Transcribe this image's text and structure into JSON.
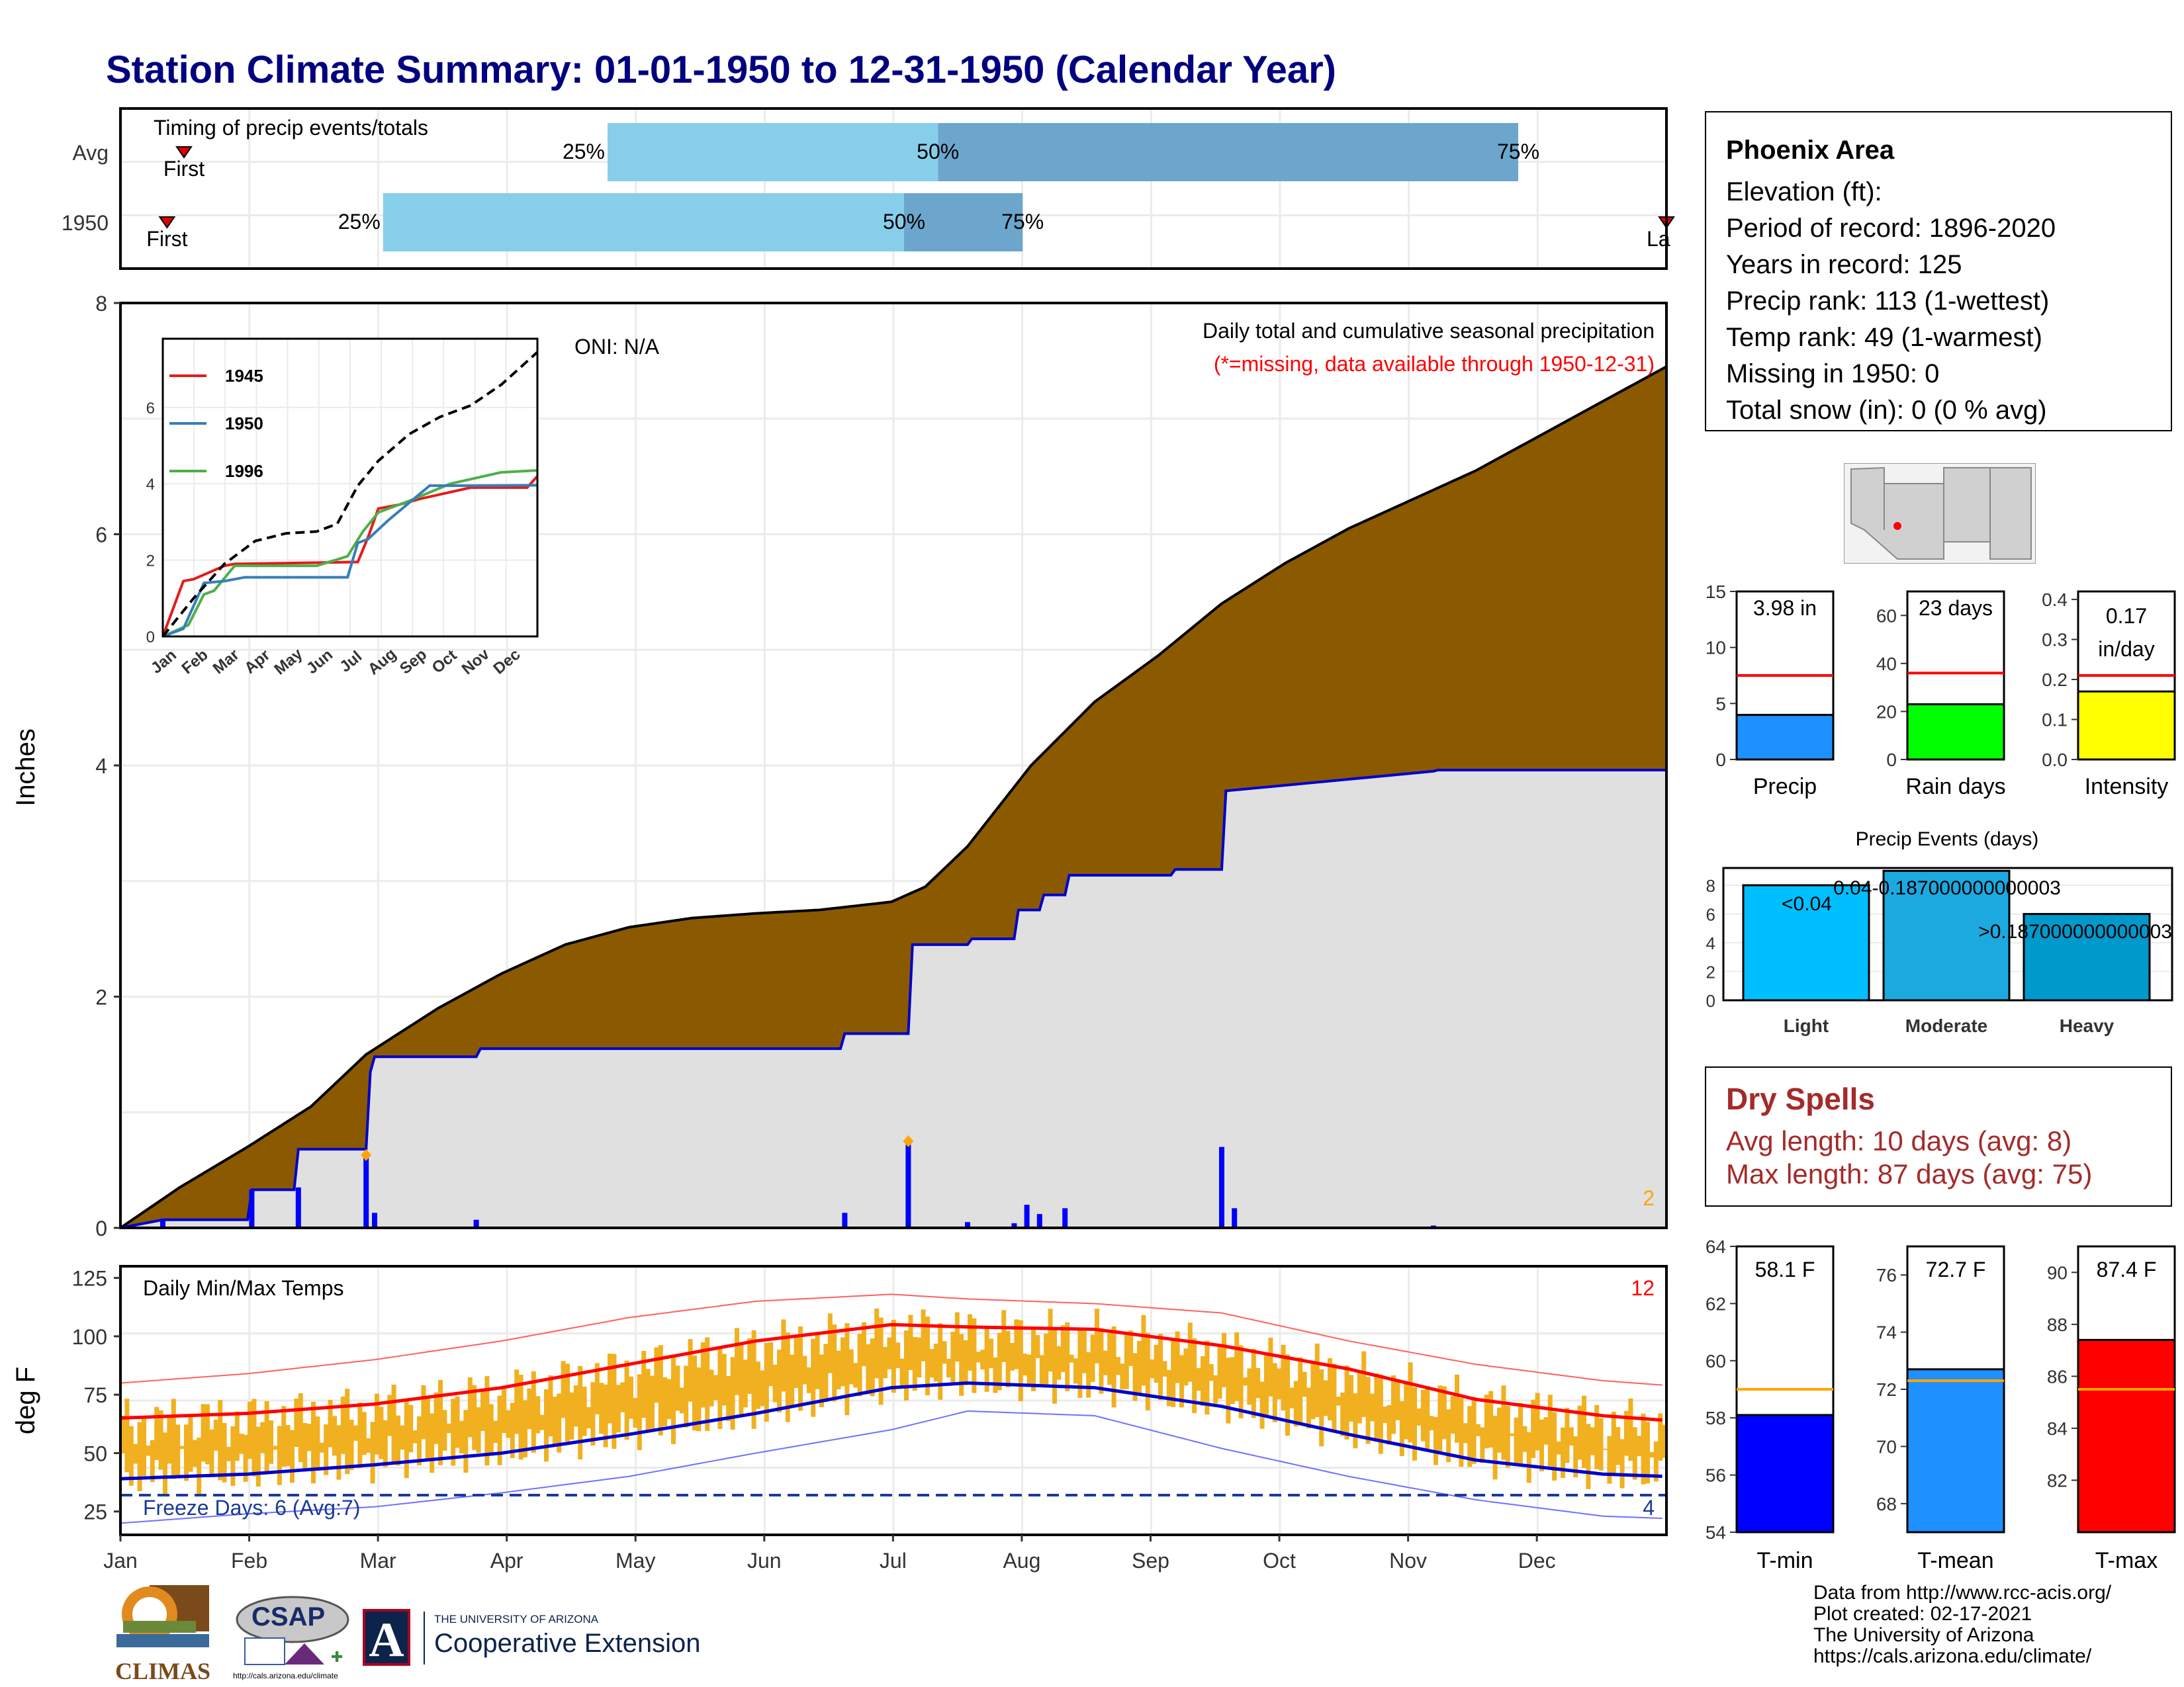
{
  "title": "Station Climate Summary: 01-01-1950 to 12-31-1950 (Calendar Year)",
  "colors": {
    "title": "#000080",
    "precip_fill": "#8B5A00",
    "current_fill": "#E0E0E0",
    "current_line": "#0000CD",
    "bars_blue": "#0000FF",
    "range_orange": "#F0B020",
    "max_red": "#FF0000",
    "min_blue": "#0000CD",
    "light_blue": "#87CEEB",
    "mid_blue": "#6CA6CD"
  },
  "timing": {
    "label": "Timing of precip events/totals",
    "rows": [
      "Avg",
      "1950"
    ],
    "pct_labels": [
      "25%",
      "50%",
      "75%"
    ],
    "first_label": "First",
    "last_label": "Last",
    "last_label_cut": "La",
    "avg": {
      "first": 15,
      "p25": 115,
      "p50": 193,
      "p75": 330,
      "last": 511
    },
    "y1950": {
      "first": 11,
      "p25": 62,
      "p50": 185,
      "p75": 213,
      "last": 575
    }
  },
  "main_chart": {
    "ylabel": "Inches",
    "oni": "ONI: N/A",
    "note1": "Daily total and cumulative seasonal precipitation",
    "note2": "(*=missing, data available through 1950-12-31)",
    "corner_count": "2",
    "ylim": [
      0,
      8
    ],
    "yticks": [
      "0",
      "2",
      "4",
      "6",
      "8"
    ],
    "cumulative_avg": {
      "day": [
        0,
        14,
        30,
        45,
        58,
        75,
        90,
        105,
        120,
        135,
        150,
        165,
        182,
        190,
        200,
        215,
        230,
        245,
        260,
        275,
        290,
        305,
        320,
        335,
        350,
        365
      ],
      "in": [
        0,
        0.35,
        0.7,
        1.05,
        1.5,
        1.9,
        2.2,
        2.45,
        2.6,
        2.68,
        2.72,
        2.75,
        2.82,
        2.95,
        3.3,
        4.0,
        4.55,
        4.95,
        5.4,
        5.75,
        6.05,
        6.3,
        6.55,
        6.85,
        7.15,
        7.45
      ]
    },
    "cumulative_1950": {
      "day": [
        0,
        10,
        30,
        31,
        41,
        42,
        58,
        59,
        60,
        84,
        85,
        170,
        171,
        186,
        187,
        200,
        201,
        211,
        212,
        217,
        218,
        223,
        224,
        248,
        249,
        260,
        261,
        310,
        311,
        365
      ],
      "in": [
        0,
        0.07,
        0.07,
        0.33,
        0.33,
        0.68,
        0.68,
        1.35,
        1.48,
        1.48,
        1.55,
        1.55,
        1.68,
        1.68,
        2.45,
        2.45,
        2.5,
        2.5,
        2.75,
        2.75,
        2.88,
        2.88,
        3.05,
        3.05,
        3.1,
        3.1,
        3.78,
        3.95,
        3.96,
        3.96
      ]
    },
    "daily_1950": {
      "day": [
        10,
        31,
        42,
        58,
        60,
        84,
        171,
        186,
        200,
        211,
        214,
        217,
        223,
        260,
        263,
        310
      ],
      "in": [
        0.07,
        0.33,
        0.35,
        0.63,
        0.13,
        0.07,
        0.13,
        0.72,
        0.05,
        0.04,
        0.2,
        0.12,
        0.17,
        0.7,
        0.17,
        0.02
      ]
    },
    "missing_marks": [
      {
        "day": 58,
        "in": 0.63
      },
      {
        "day": 186,
        "in": 0.75
      }
    ]
  },
  "inset": {
    "legend": [
      "1945",
      "1950",
      "1996"
    ],
    "legend_colors": [
      "#E41A1C",
      "#377EB8",
      "#4DAF4A"
    ],
    "yticks": [
      "0",
      "2",
      "4",
      "6"
    ],
    "xticks": [
      "Jan",
      "Feb",
      "Mar",
      "Apr",
      "May",
      "Jun",
      "Jul",
      "Aug",
      "Sep",
      "Oct",
      "Nov",
      "Dec"
    ],
    "mean_line": {
      "day": [
        0,
        30,
        60,
        90,
        120,
        150,
        170,
        190,
        210,
        240,
        270,
        300,
        330,
        365
      ],
      "in": [
        0,
        1,
        1.9,
        2.5,
        2.7,
        2.75,
        2.95,
        3.95,
        4.6,
        5.3,
        5.75,
        6.05,
        6.6,
        7.45
      ]
    },
    "y1945": {
      "day": [
        0,
        20,
        30,
        60,
        70,
        190,
        200,
        210,
        230,
        250,
        300,
        355,
        365
      ],
      "in": [
        0,
        1.45,
        1.5,
        1.85,
        1.9,
        1.95,
        2.6,
        3.35,
        3.45,
        3.6,
        3.9,
        3.9,
        4.2
      ]
    },
    "y1950": {
      "day": [
        0,
        20,
        40,
        60,
        80,
        180,
        190,
        200,
        220,
        260,
        300,
        365
      ],
      "in": [
        0,
        0.2,
        1.4,
        1.45,
        1.55,
        1.55,
        2.45,
        2.55,
        3.05,
        3.95,
        3.95,
        3.96
      ]
    },
    "y1996": {
      "day": [
        0,
        25,
        40,
        50,
        70,
        150,
        180,
        195,
        210,
        240,
        280,
        330,
        365
      ],
      "in": [
        0,
        0.3,
        1.1,
        1.2,
        1.85,
        1.85,
        2.1,
        2.75,
        3.25,
        3.55,
        4.0,
        4.3,
        4.35
      ]
    }
  },
  "temp_chart": {
    "title": "Daily Min/Max Temps",
    "ylabel": "deg F",
    "freeze": "Freeze Days: 6 (Avg:7)",
    "corner_top": "12",
    "corner_bottom": "4",
    "yticks": [
      "25",
      "50",
      "75",
      "100",
      "125"
    ],
    "months": [
      "Jan",
      "Feb",
      "Mar",
      "Apr",
      "May",
      "Jun",
      "Jul",
      "Aug",
      "Sep",
      "Oct",
      "Nov",
      "Dec"
    ],
    "avg_max": {
      "day": [
        0,
        30,
        60,
        90,
        120,
        150,
        182,
        200,
        230,
        260,
        290,
        320,
        350,
        365
      ],
      "f": [
        65,
        67,
        71,
        78,
        88,
        98,
        105,
        104,
        103,
        96,
        86,
        73,
        66,
        64
      ]
    },
    "avg_min": {
      "day": [
        0,
        30,
        60,
        90,
        120,
        150,
        182,
        200,
        230,
        260,
        290,
        320,
        350,
        365
      ],
      "f": [
        39,
        41,
        45,
        50,
        58,
        67,
        78,
        80,
        78,
        70,
        58,
        47,
        41,
        40
      ]
    },
    "rec_max": {
      "day": [
        0,
        30,
        60,
        90,
        120,
        150,
        182,
        200,
        230,
        260,
        290,
        320,
        350,
        365
      ],
      "f": [
        80,
        84,
        90,
        98,
        108,
        115,
        118,
        116,
        114,
        110,
        98,
        88,
        81,
        79
      ]
    },
    "rec_min": {
      "day": [
        0,
        30,
        60,
        90,
        120,
        150,
        182,
        200,
        230,
        260,
        290,
        320,
        350,
        365
      ],
      "f": [
        20,
        24,
        27,
        33,
        40,
        50,
        60,
        68,
        66,
        52,
        40,
        30,
        23,
        22
      ]
    }
  },
  "summary_precip": {
    "precip": {
      "label": "Precip",
      "value_text": "3.98 in",
      "value": 3.98,
      "avg": 7.5,
      "ymax": 15,
      "yticks": [
        "0",
        "5",
        "10",
        "15"
      ],
      "color": "#1E90FF"
    },
    "rain_days": {
      "label": "Rain days",
      "value_text": "23 days",
      "value": 23,
      "avg": 36,
      "ymax": 70,
      "yticks": [
        "0",
        "20",
        "40",
        "60"
      ],
      "color": "#00FF00"
    },
    "intensity": {
      "label": "Intensity",
      "value_text_1": "0.17",
      "value_text_2": "in/day",
      "value": 0.17,
      "avg": 0.21,
      "ymax": 0.42,
      "yticks": [
        "0.0",
        "0.1",
        "0.2",
        "0.3",
        "0.4"
      ],
      "color": "#FFFF00"
    }
  },
  "precip_events": {
    "title": "Precip Events (days)",
    "categories": [
      "Light",
      "Moderate",
      "Heavy"
    ],
    "values": [
      8,
      9,
      6
    ],
    "bar_labels": [
      "<0.04",
      "0.04-0.187000000000003",
      ">0.187000000000003"
    ],
    "colors": [
      "#00BFFF",
      "#1CA9E0",
      "#0099CC"
    ],
    "yticks": [
      "0",
      "2",
      "4",
      "6",
      "8"
    ]
  },
  "temp_summary": {
    "tmin": {
      "label": "T-min",
      "value_text": "58.1 F",
      "value": 58.1,
      "avg": 59.0,
      "ylim": [
        54,
        64
      ],
      "yticks": [
        "54",
        "56",
        "58",
        "60",
        "62",
        "64"
      ],
      "color": "#0000FF"
    },
    "tmean": {
      "label": "T-mean",
      "value_text": "72.7 F",
      "value": 72.7,
      "avg": 72.3,
      "ylim": [
        67,
        77
      ],
      "yticks": [
        "68",
        "70",
        "72",
        "74",
        "76"
      ],
      "color": "#1E90FF"
    },
    "tmax": {
      "label": "T-max",
      "value_text": "87.4 F",
      "value": 87.4,
      "avg": 85.5,
      "ylim": [
        80,
        91
      ],
      "yticks": [
        "82",
        "84",
        "86",
        "88",
        "90"
      ],
      "color": "#FF0000"
    }
  },
  "info": {
    "station": "Phoenix Area",
    "lines": [
      "Elevation (ft):",
      "Period of record: 1896-2020",
      "Years in record: 125",
      "Precip rank: 113 (1-wettest)",
      "Temp rank: 49 (1-warmest)",
      "Missing in 1950: 0",
      "Total snow (in): 0 (0 % avg)"
    ]
  },
  "dry_spells": {
    "title": "Dry Spells",
    "avg_line": "Avg length: 10 days (avg: 8)",
    "max_line": "Max length: 87 days (avg: 75)"
  },
  "credits": [
    "Data from http://www.rcc-acis.org/",
    "Plot created: 02-17-2021",
    "The University of Arizona",
    "https://cals.arizona.edu/climate/"
  ],
  "logos": {
    "climas": "CLIMAS",
    "csap": "CSAP",
    "csap_url": "http://cals.arizona.edu/climate",
    "ua_small": "THE UNIVERSITY OF ARIZONA",
    "ua_big": "Cooperative Extension",
    "ua_letter": "A"
  }
}
